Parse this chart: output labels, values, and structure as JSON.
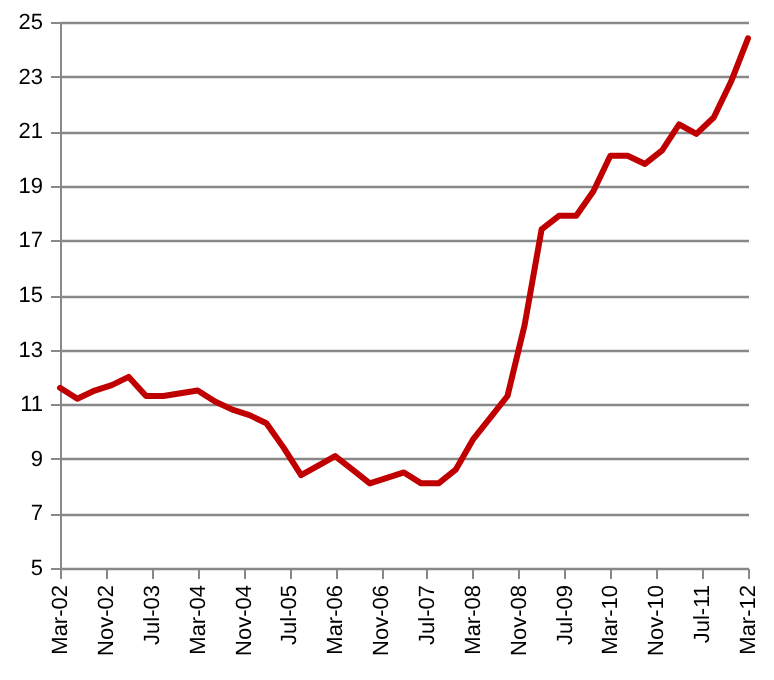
{
  "chart_data": {
    "type": "line",
    "x": [
      "2002-03",
      "2002-06",
      "2002-09",
      "2002-12",
      "2003-03",
      "2003-06",
      "2003-09",
      "2003-12",
      "2004-03",
      "2004-06",
      "2004-09",
      "2004-12",
      "2005-03",
      "2005-06",
      "2005-09",
      "2005-12",
      "2006-03",
      "2006-06",
      "2006-09",
      "2006-12",
      "2007-03",
      "2007-06",
      "2007-09",
      "2007-12",
      "2008-03",
      "2008-06",
      "2008-09",
      "2008-12",
      "2009-03",
      "2009-06",
      "2009-09",
      "2009-12",
      "2010-03",
      "2010-06",
      "2010-09",
      "2010-12",
      "2011-03",
      "2011-06",
      "2011-09",
      "2011-12",
      "2012-03"
    ],
    "series": [
      {
        "color": "#c00000",
        "values": [
          11.6,
          11.2,
          11.5,
          11.7,
          12.0,
          11.3,
          11.3,
          11.4,
          11.5,
          11.1,
          10.8,
          10.6,
          10.3,
          9.4,
          8.4,
          8.75,
          9.1,
          8.6,
          8.1,
          8.3,
          8.5,
          8.1,
          8.1,
          8.6,
          9.7,
          10.5,
          11.3,
          13.9,
          17.4,
          17.9,
          17.9,
          18.8,
          20.1,
          20.1,
          19.8,
          20.3,
          21.25,
          20.9,
          21.5,
          22.8,
          24.4
        ]
      }
    ],
    "xlim": [
      "2002-03",
      "2012-03"
    ],
    "xticks": [
      {
        "value": "2002-03",
        "label": "Mar-02"
      },
      {
        "value": "2002-11",
        "label": "Nov-02"
      },
      {
        "value": "2003-07",
        "label": "Jul-03"
      },
      {
        "value": "2004-03",
        "label": "Mar-04"
      },
      {
        "value": "2004-11",
        "label": "Nov-04"
      },
      {
        "value": "2005-07",
        "label": "Jul-05"
      },
      {
        "value": "2006-03",
        "label": "Mar-06"
      },
      {
        "value": "2006-11",
        "label": "Nov-06"
      },
      {
        "value": "2007-07",
        "label": "Jul-07"
      },
      {
        "value": "2008-03",
        "label": "Mar-08"
      },
      {
        "value": "2008-11",
        "label": "Nov-08"
      },
      {
        "value": "2009-07",
        "label": "Jul-09"
      },
      {
        "value": "2010-03",
        "label": "Mar-10"
      },
      {
        "value": "2010-11",
        "label": "Nov-10"
      },
      {
        "value": "2011-07",
        "label": "Jul-11"
      },
      {
        "value": "2012-03",
        "label": "Mar-12"
      }
    ],
    "ylim": [
      5,
      25
    ],
    "yticks": [
      5,
      7,
      9,
      11,
      13,
      15,
      17,
      19,
      21,
      23,
      25
    ],
    "grid": "y",
    "line_style": "solid"
  }
}
